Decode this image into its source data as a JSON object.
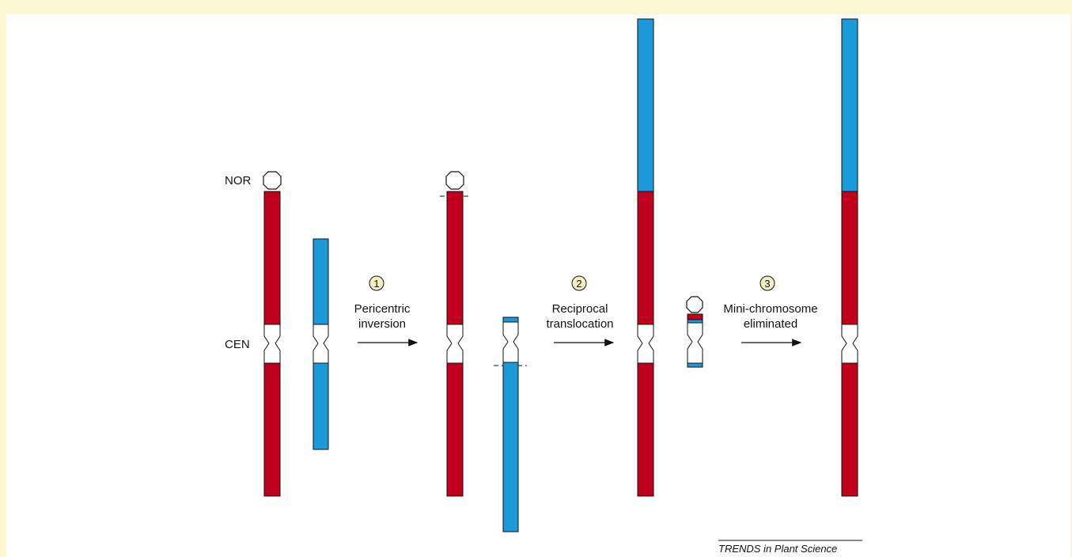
{
  "labels": {
    "nor": "NOR",
    "cen": "CEN"
  },
  "steps": [
    {
      "number": "1",
      "line1": "Pericentric",
      "line2": "inversion"
    },
    {
      "number": "2",
      "line1": "Reciprocal",
      "line2": "translocation"
    },
    {
      "number": "3",
      "line1": "Mini-chromosome",
      "line2": "eliminated"
    }
  ],
  "credit": "TRENDS in Plant Science",
  "colors": {
    "red": "#c0001c",
    "blue": "#1a9ad8",
    "background": "#fdf8d4",
    "step_circle": "#f5efc0"
  }
}
